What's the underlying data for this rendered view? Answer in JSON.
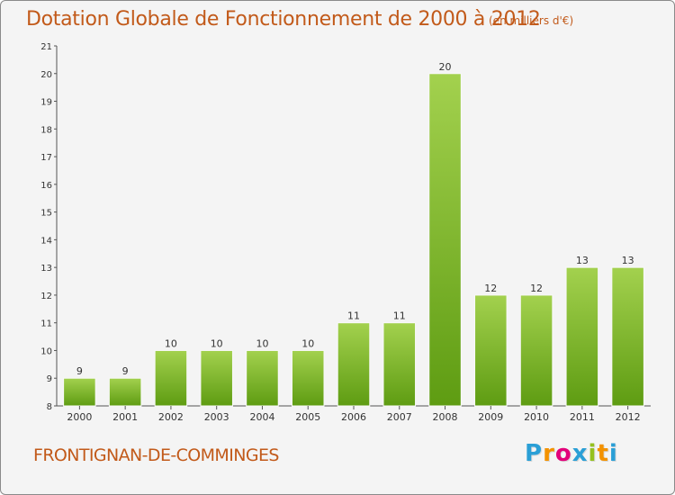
{
  "title": "Dotation Globale de Fonctionnement de 2000 à 2012",
  "subtitle": "(en milliers d'€)",
  "commune": "FRONTIGNAN-DE-COMMINGES",
  "logo": {
    "letters": [
      "P",
      "r",
      "o",
      "x",
      "i",
      "t",
      "i"
    ],
    "colors": [
      "#2a9fd6",
      "#f39200",
      "#e2007a",
      "#2a9fd6",
      "#95c11f",
      "#f39200",
      "#2a9fd6"
    ]
  },
  "colors": {
    "bar_light": "#a3d14e",
    "bar_dark": "#5e9c12",
    "text": "#c25a1a"
  },
  "chart_data": {
    "type": "bar",
    "title": "Dotation Globale de Fonctionnement de 2000 à 2012",
    "subtitle": "(en milliers d'€)",
    "categories": [
      "2000",
      "2001",
      "2002",
      "2003",
      "2004",
      "2005",
      "2006",
      "2007",
      "2008",
      "2009",
      "2010",
      "2011",
      "2012"
    ],
    "values": [
      9,
      9,
      10,
      10,
      10,
      10,
      11,
      11,
      20,
      12,
      12,
      13,
      13
    ],
    "ylim": [
      8,
      21
    ],
    "yticks": [
      8,
      9,
      10,
      11,
      12,
      13,
      14,
      15,
      16,
      17,
      18,
      19,
      20,
      21
    ],
    "grid": false,
    "data_labels": true
  }
}
